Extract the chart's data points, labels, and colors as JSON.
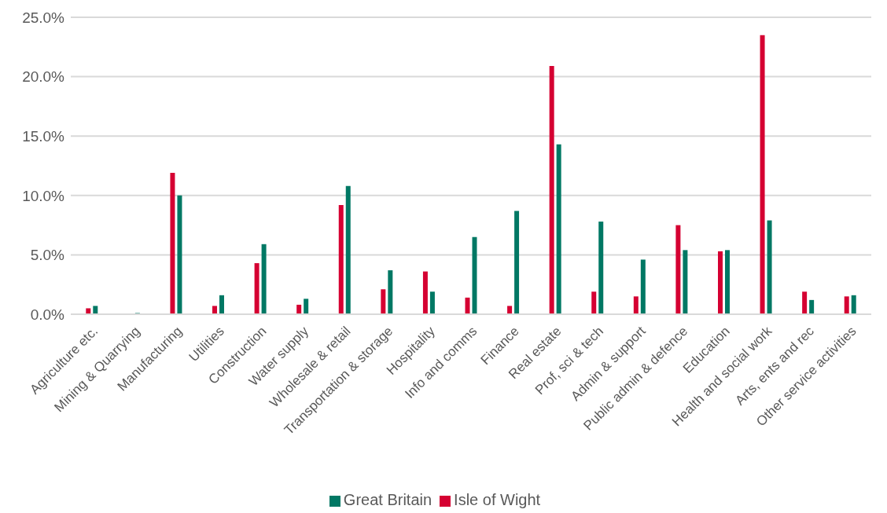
{
  "chart_data": {
    "type": "bar",
    "categories": [
      "Agriculture etc.",
      "Mining & Quarrying",
      "Manufacturing",
      "Utilities",
      "Construction",
      "Water supply",
      "Wholesale & retail",
      "Transportation & storage",
      "Hospitality",
      "Info and comms",
      "Finance",
      "Real estate",
      "Prof, sci & tech",
      "Admin & support",
      "Public admin & defence",
      "Education",
      "Health and social work",
      "Arts, ents and rec",
      "Other service activities"
    ],
    "series": [
      {
        "name": "Isle of Wight",
        "color": "#d50032",
        "values": [
          0.5,
          0.0,
          11.9,
          0.7,
          4.3,
          0.8,
          9.2,
          2.1,
          3.6,
          1.4,
          0.7,
          20.9,
          1.9,
          1.5,
          7.5,
          5.3,
          23.5,
          1.9,
          1.5
        ]
      },
      {
        "name": "Great Britain",
        "color": "#007864",
        "values": [
          0.7,
          0.1,
          10.0,
          1.6,
          5.9,
          1.3,
          10.8,
          3.7,
          1.9,
          6.5,
          8.7,
          14.3,
          7.8,
          4.6,
          5.4,
          5.4,
          7.9,
          1.2,
          1.6
        ]
      }
    ],
    "ylim": [
      0,
      25
    ],
    "yticks": [
      {
        "value": 0,
        "label": "0.0%"
      },
      {
        "value": 5,
        "label": "5.0%"
      },
      {
        "value": 10,
        "label": "10.0%"
      },
      {
        "value": 15,
        "label": "15.0%"
      },
      {
        "value": 20,
        "label": "20.0%"
      },
      {
        "value": 25,
        "label": "25.0%"
      }
    ],
    "grid": "y",
    "legend": "bottom"
  }
}
